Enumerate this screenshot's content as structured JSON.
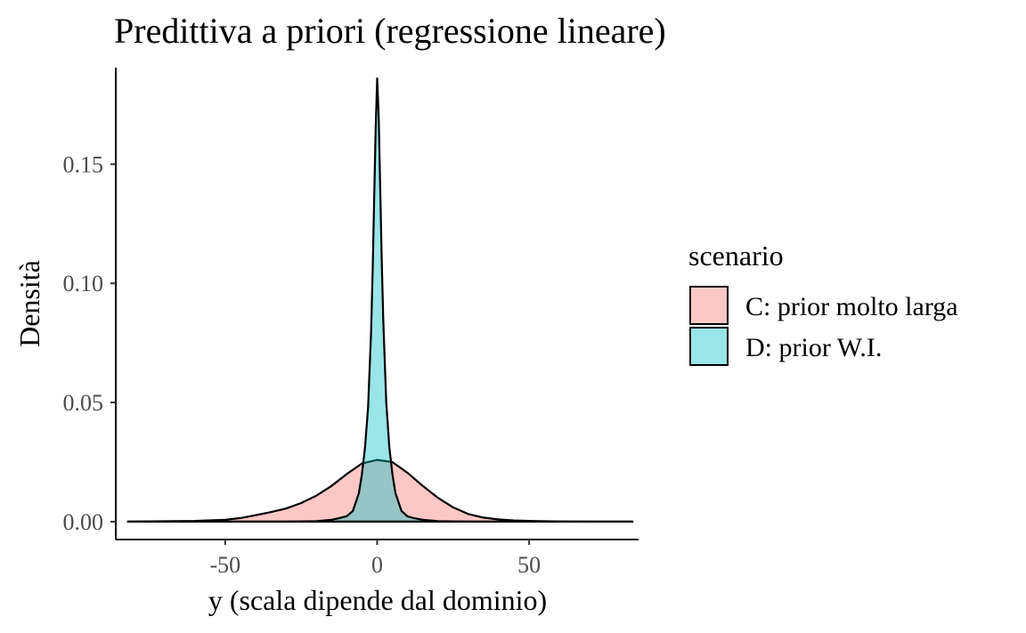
{
  "chart_data": {
    "type": "area",
    "title": "Predittiva a priori (regressione lineare)",
    "xlabel": "y (scala dipende dal dominio)",
    "ylabel": "Densità",
    "xlim": [
      -86,
      86
    ],
    "ylim": [
      -0.0075,
      0.1905
    ],
    "xticks": [
      -50,
      0,
      50
    ],
    "xtick_labels": [
      "-50",
      "0",
      "50"
    ],
    "yticks": [
      0,
      0.05,
      0.1,
      0.15
    ],
    "ytick_labels": [
      "0.00",
      "0.05",
      "0.10",
      "0.15"
    ],
    "grid": false,
    "legend": {
      "title": "scenario",
      "position": "right"
    },
    "series": [
      {
        "name": "C: prior molto larga",
        "color": "#F8766D",
        "x": [
          -82,
          -60,
          -50,
          -45,
          -40,
          -35,
          -30,
          -25,
          -20,
          -15,
          -10,
          -5,
          0,
          5,
          10,
          15,
          20,
          25,
          30,
          35,
          40,
          45,
          50,
          60,
          70,
          84
        ],
        "y": [
          0.0,
          0.0003,
          0.0008,
          0.0015,
          0.0027,
          0.004,
          0.0055,
          0.0078,
          0.0109,
          0.015,
          0.02,
          0.0244,
          0.0259,
          0.025,
          0.0205,
          0.015,
          0.01,
          0.006,
          0.0032,
          0.0017,
          0.0009,
          0.0005,
          0.0003,
          0.0001,
          3e-05,
          0.0
        ]
      },
      {
        "name": "D: prior W.I.",
        "color": "#00BFC4",
        "x": [
          -82,
          -30,
          -20,
          -15,
          -12,
          -10,
          -8,
          -6,
          -5,
          -4,
          -3,
          -2,
          -1.5,
          -1,
          -0.5,
          0,
          0.5,
          1,
          1.5,
          2,
          3,
          4,
          5,
          6,
          8,
          10,
          12,
          15,
          20,
          30,
          84
        ],
        "y": [
          0.0,
          0.0,
          0.0002,
          0.0008,
          0.0016,
          0.0023,
          0.0045,
          0.012,
          0.02,
          0.031,
          0.048,
          0.08,
          0.105,
          0.135,
          0.165,
          0.186,
          0.17,
          0.14,
          0.11,
          0.085,
          0.05,
          0.031,
          0.02,
          0.012,
          0.0045,
          0.0022,
          0.0015,
          0.0008,
          0.0002,
          0.0,
          0.0
        ]
      }
    ]
  }
}
